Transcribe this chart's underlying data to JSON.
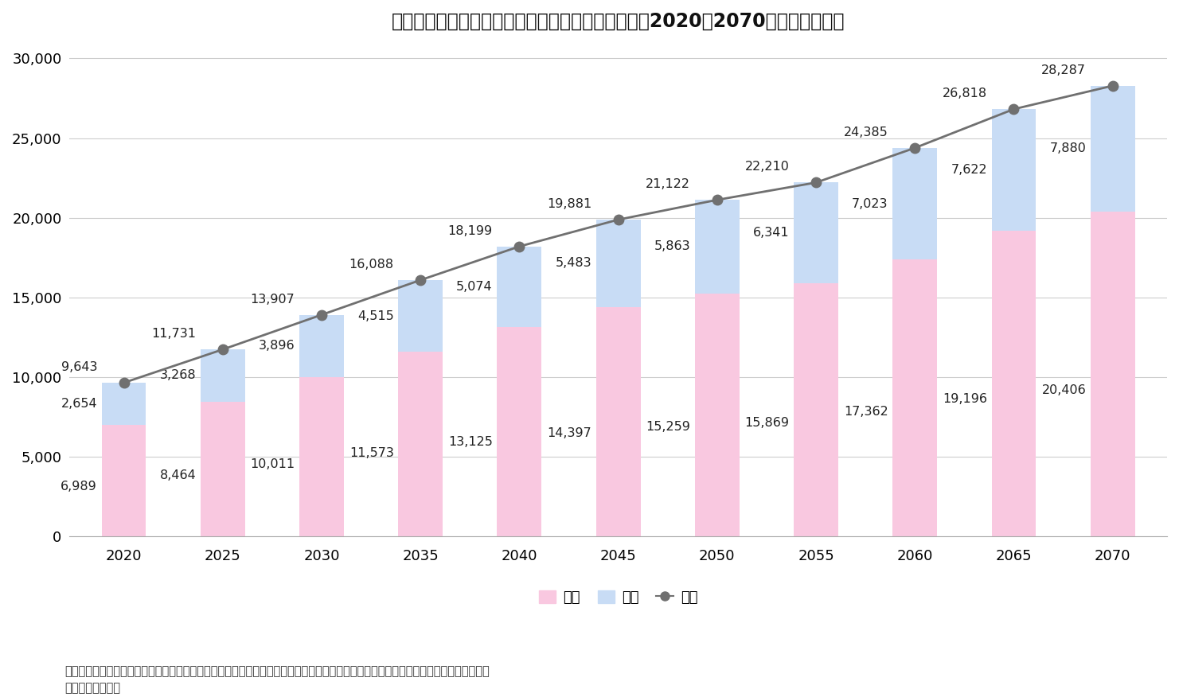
{
  "title": "図表３．男女別、認知症数（推計値）の年次推移（2020－2070年）単位：千人",
  "years": [
    2020,
    2025,
    2030,
    2035,
    2040,
    2045,
    2050,
    2055,
    2060,
    2065,
    2070
  ],
  "female": [
    6989,
    8464,
    10011,
    11573,
    13125,
    14397,
    15259,
    15869,
    17362,
    19196,
    20406
  ],
  "male": [
    2654,
    3268,
    3896,
    4515,
    5074,
    5483,
    5863,
    6341,
    7023,
    7622,
    7880
  ],
  "total": [
    9643,
    11731,
    13907,
    16088,
    18199,
    19881,
    21122,
    22210,
    24385,
    26818,
    28287
  ],
  "female_color": "#f9c8e0",
  "male_color": "#c8dcf5",
  "total_color": "#707070",
  "bar_width": 0.45,
  "ylim": [
    0,
    31000
  ],
  "yticks": [
    0,
    5000,
    10000,
    15000,
    20000,
    25000,
    30000
  ],
  "legend_female": "女性",
  "legend_male": "男性",
  "legend_total": "総数",
  "source_line1": "出所：「国立社会保障・人口問題研究所の日本の将来推計（全国版）の全国将来推計人口値」及び「、認知症有病率推定数学モデル」を",
  "source_line2": "用いて筆者が推計",
  "bg_color": "#ffffff",
  "plot_bg_color": "#ffffff",
  "grid_color": "#cccccc",
  "title_fontsize": 17,
  "tick_fontsize": 13,
  "annot_fontsize": 11.5,
  "legend_fontsize": 13,
  "source_fontsize": 10.5
}
